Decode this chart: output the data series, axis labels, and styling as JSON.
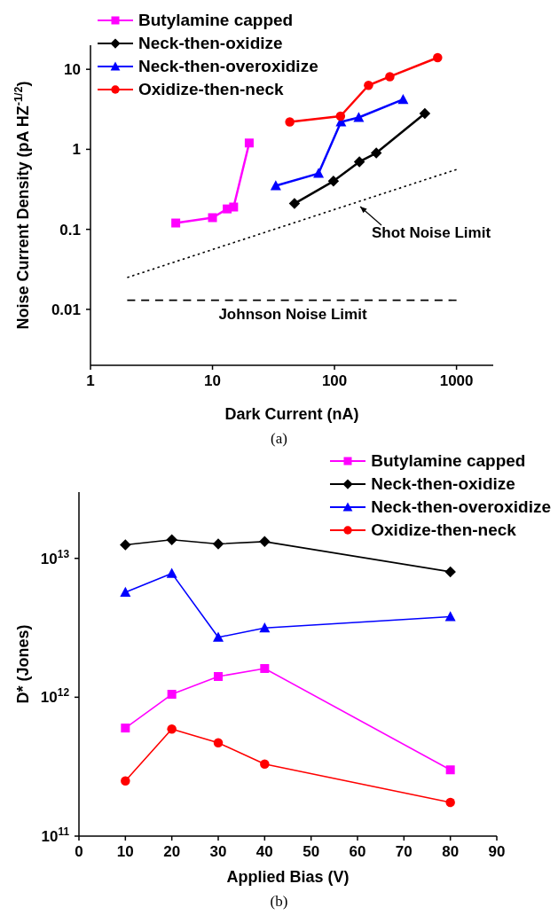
{
  "chart_data": [
    {
      "type": "line",
      "xlabel": "Dark Current (nA)",
      "ylabel": "Noise Current Density (pA HZ$^{-1/2}$)",
      "log": "xy",
      "xlim": [
        1,
        2000
      ],
      "ylim": [
        0.002,
        20
      ],
      "xticks": [
        1,
        10,
        100,
        1000
      ],
      "yticks": [
        0.01,
        0.1,
        1,
        10
      ],
      "legend": "top left",
      "series": [
        {
          "name": "Butylamine capped",
          "color": "#ff00ff",
          "marker": "square",
          "x": [
            5,
            10,
            13.2,
            14.9,
            20
          ],
          "values": [
            0.12,
            0.14,
            0.18,
            0.19,
            1.2
          ]
        },
        {
          "name": "Neck-then-oxidize",
          "color": "#000000",
          "marker": "diamond",
          "x": [
            47,
            98,
            160,
            220,
            550
          ],
          "values": [
            0.21,
            0.4,
            0.7,
            0.9,
            2.8
          ]
        },
        {
          "name": "Neck-then-overoxidize",
          "color": "#0000ff",
          "marker": "triangle",
          "x": [
            33,
            74,
            113,
            158,
            365
          ],
          "values": [
            0.35,
            0.5,
            2.2,
            2.5,
            4.2
          ]
        },
        {
          "name": "Oxidize-then-neck",
          "color": "#ff0000",
          "marker": "circle",
          "x": [
            43,
            112,
            190,
            284,
            700
          ],
          "values": [
            2.2,
            2.6,
            6.3,
            8.1,
            14
          ]
        },
        {
          "color": "#000000",
          "marker": "none",
          "line_style": "dotted",
          "x": [
            2,
            1000
          ],
          "values": [
            0.025,
            0.56
          ]
        },
        {
          "color": "#000000",
          "marker": "none",
          "line_style": "dashed",
          "x": [
            2,
            1000
          ],
          "values": [
            0.013,
            0.013
          ]
        }
      ],
      "annotations": [
        "Shot Noise Limit",
        "Johnson Noise Limit",
        "(a)"
      ]
    },
    {
      "type": "line",
      "xlabel": "Applied Bias (V)",
      "ylabel": "D* (Jones)",
      "log": "y",
      "xlim": [
        0,
        90
      ],
      "ylim": [
        100000000000.0,
        30000000000000.0
      ],
      "xticks": [
        0,
        10,
        20,
        30,
        40,
        50,
        60,
        70,
        80,
        90
      ],
      "yticks": [
        {
          "value": 100000000000.0,
          "label": "10$^{11}$"
        },
        {
          "value": 1000000000000.0,
          "label": "10$^{12}$"
        },
        {
          "value": 10000000000000.0,
          "label": "10$^{13}$"
        }
      ],
      "legend": "top right",
      "x": [
        10,
        20,
        30,
        40,
        80
      ],
      "series": [
        {
          "name": "Butylamine capped",
          "color": "#ff00ff",
          "marker": "square",
          "values": [
            600000000000.0,
            1050000000000.0,
            1410000000000.0,
            1610000000000.0,
            300000000000.0
          ]
        },
        {
          "name": "Neck-then-oxidize",
          "color": "#000000",
          "marker": "diamond",
          "values": [
            12500000000000.0,
            13600000000000.0,
            12700000000000.0,
            13200000000000.0,
            8000000000000.0
          ]
        },
        {
          "name": "Neck-then-overoxidize",
          "color": "#0000ff",
          "marker": "triangle",
          "values": [
            5700000000000.0,
            7800000000000.0,
            2700000000000.0,
            3150000000000.0,
            3800000000000.0
          ]
        },
        {
          "name": "Oxidize-then-neck",
          "color": "#ff0000",
          "marker": "circle",
          "values": [
            250000000000.0,
            590000000000.0,
            470000000000.0,
            330000000000.0,
            175000000000.0
          ]
        }
      ],
      "annotations": [
        "(b)"
      ]
    }
  ]
}
